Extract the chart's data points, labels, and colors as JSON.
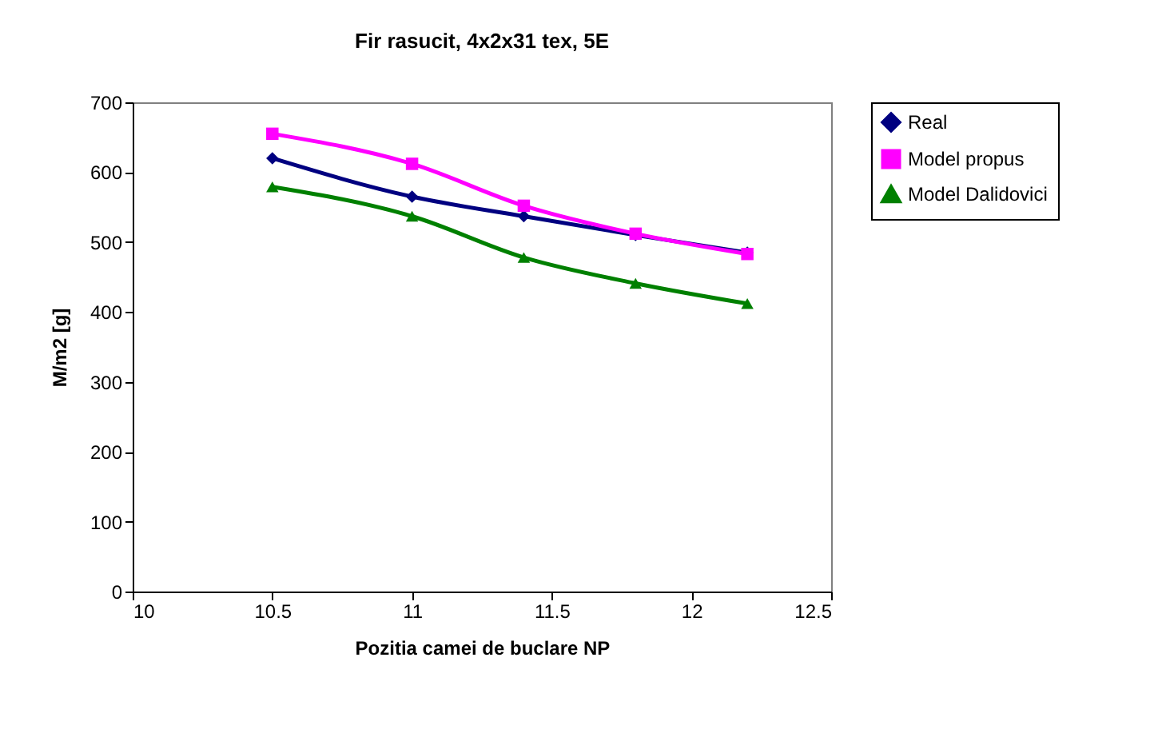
{
  "chart_data": {
    "type": "line",
    "title": "Fir rasucit, 4x2x31 tex, 5E",
    "xlabel": "Pozitia camei de buclare NP",
    "ylabel": "M/m2 [g]",
    "x": [
      10.5,
      11,
      11.4,
      11.8,
      12.2
    ],
    "series": [
      {
        "name": "Real",
        "color": "#000080",
        "values": [
          620,
          565,
          537,
          510,
          485
        ],
        "marker": "diamond"
      },
      {
        "name": "Model propus",
        "color": "#ff00ff",
        "values": [
          655,
          612,
          552,
          512,
          483
        ],
        "marker": "square"
      },
      {
        "name": "Model Dalidovici",
        "color": "#008000",
        "values": [
          579,
          537,
          478,
          441,
          412
        ],
        "marker": "triangle"
      }
    ],
    "xlim": [
      10,
      12.5
    ],
    "xticks": [
      10,
      10.5,
      11,
      11.5,
      12,
      12.5
    ],
    "ylim": [
      0,
      700
    ],
    "yticks": [
      0,
      100,
      200,
      300,
      400,
      500,
      600,
      700
    ],
    "grid": false,
    "legend": "right",
    "line_style": "solid"
  }
}
